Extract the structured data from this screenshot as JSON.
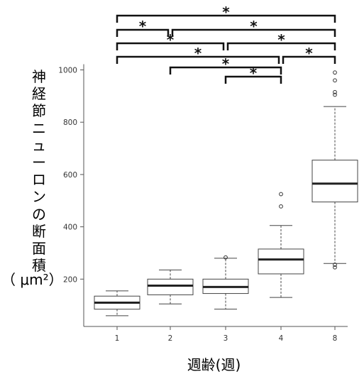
{
  "chart_data": {
    "type": "box",
    "xlabel": "週齢(週)",
    "ylabel": "神経節ニューロンの断面積",
    "yunit": "（ μm²）",
    "categories": [
      "1",
      "2",
      "3",
      "4",
      "8"
    ],
    "ylim": [
      0,
      1000
    ],
    "yticks": [
      200,
      400,
      600,
      800,
      1000
    ],
    "boxes": [
      {
        "category": "1",
        "whisker_low": 60,
        "q1": 85,
        "median": 110,
        "q3": 135,
        "whisker_high": 155,
        "outliers": []
      },
      {
        "category": "2",
        "whisker_low": 105,
        "q1": 140,
        "median": 175,
        "q3": 200,
        "whisker_high": 235,
        "outliers": []
      },
      {
        "category": "3",
        "whisker_low": 85,
        "q1": 145,
        "median": 170,
        "q3": 200,
        "whisker_high": 280,
        "outliers": [
          283
        ]
      },
      {
        "category": "4",
        "whisker_low": 130,
        "q1": 220,
        "median": 275,
        "q3": 315,
        "whisker_high": 405,
        "outliers": [
          478,
          525
        ]
      },
      {
        "category": "8",
        "whisker_low": 260,
        "q1": 495,
        "median": 565,
        "q3": 655,
        "whisker_high": 860,
        "outliers": [
          245,
          255,
          905,
          915,
          960,
          990
        ]
      }
    ],
    "significance": [
      {
        "from": "1",
        "to": "8",
        "label": "*"
      },
      {
        "from": "1",
        "to": "2",
        "label": "*"
      },
      {
        "from": "2",
        "to": "8",
        "label": "*"
      },
      {
        "from": "1",
        "to": "3",
        "label": "*"
      },
      {
        "from": "3",
        "to": "8",
        "label": "*"
      },
      {
        "from": "1",
        "to": "4",
        "label": "*"
      },
      {
        "from": "4",
        "to": "8",
        "label": "*"
      },
      {
        "from": "2",
        "to": "4",
        "label": "*"
      },
      {
        "from": "3",
        "to": "4",
        "label": "*"
      }
    ]
  }
}
